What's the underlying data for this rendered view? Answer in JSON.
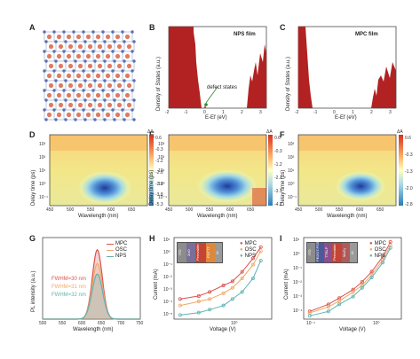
{
  "panels": {
    "A": {
      "letter": "A"
    },
    "B": {
      "letter": "B",
      "title": "NPS film",
      "annotation": "defect states",
      "xlabel": "E-Eₓ (eV)",
      "xlabel_text": "E-Ef (eV)",
      "ylabel": "Density of States (a.u.)",
      "xticks": [
        "-2",
        "-1",
        "0",
        "1",
        "2",
        "3"
      ]
    },
    "C": {
      "letter": "C",
      "title": "MPC film",
      "xlabel_text": "E-Ef (eV)",
      "ylabel": "Density of States (a.u.)",
      "xticks": [
        "-2",
        "-1",
        "0",
        "1",
        "2",
        "3"
      ]
    },
    "D": {
      "letter": "D",
      "xlabel": "Wavelength (nm)",
      "ylabel": "Delay time (ps)",
      "xticks": [
        "450",
        "500",
        "550",
        "600",
        "650"
      ],
      "yticks": [
        "10³",
        "10²",
        "10¹",
        "10⁰",
        "10⁻¹"
      ],
      "cbar_title": "ΔA",
      "cbar": [
        "0.6",
        "-0.3",
        "-1.2",
        "-2.0",
        "-2.9",
        "-3.8",
        "-5.3"
      ]
    },
    "E": {
      "letter": "E",
      "xlabel": "Wavelength (nm)",
      "ylabel": "Delay time (ps)",
      "xticks": [
        "450",
        "500",
        "550",
        "600",
        "650"
      ],
      "yticks": [
        "10³",
        "10²",
        "10¹",
        "10⁰",
        "10⁻¹"
      ],
      "cbar_title": "ΔA",
      "cbar": [
        "0.6",
        "-0.3",
        "-1.2",
        "-2.1",
        "-3.1",
        "-4.2"
      ]
    },
    "F": {
      "letter": "F",
      "xlabel": "Wavelength (nm)",
      "ylabel": "Delay time (ps)",
      "xticks": [
        "450",
        "500",
        "550",
        "600",
        "650"
      ],
      "yticks": [
        "10³",
        "10²",
        "10¹",
        "10⁰",
        "10⁻¹"
      ],
      "cbar_title": "ΔA",
      "cbar": [
        "0.6",
        "-0.3",
        "-1.3",
        "-2.0",
        "-2.8"
      ]
    },
    "G": {
      "letter": "G",
      "xlabel": "Wavelength (nm)",
      "ylabel": "PL intensity (a.u.)",
      "xticks": [
        "500",
        "550",
        "600",
        "650",
        "700",
        "750"
      ],
      "legend": [
        "MPC",
        "OSC",
        "NPS"
      ],
      "fwhm": [
        "FWHM=30 nm",
        "FWHM=31 nm",
        "FWHM=32 nm"
      ]
    },
    "H": {
      "letter": "H",
      "xlabel": "Voltage (V)",
      "ylabel": "Current (mA)",
      "yticks": [
        "10¹",
        "10⁰",
        "10⁻¹",
        "10⁻²",
        "10⁻³",
        "10⁻⁴",
        "10⁻⁵"
      ],
      "xticks": [
        "10⁰"
      ],
      "legend": [
        "MPC",
        "OSC",
        "NPS"
      ],
      "device": [
        "ITO",
        "ZnO",
        "Perovskite",
        "PDTTT",
        "Al"
      ]
    },
    "I": {
      "letter": "I",
      "xlabel": "Voltage (V)",
      "ylabel": "Current (mA)",
      "yticks": [
        "10¹",
        "10⁰",
        "10⁻¹",
        "10⁻²",
        "10⁻³",
        "10⁻⁴"
      ],
      "xticks": [
        "10⁻¹",
        "10⁰"
      ],
      "legend": [
        "MPC",
        "OSC",
        "NPS"
      ],
      "device": [
        "ITO",
        "PEDOT:PSS",
        "TTBLP",
        "Perovskite",
        "MoO₃",
        "Al"
      ]
    }
  },
  "colors": {
    "MPC": "#d9534f",
    "OSC": "#f0a868",
    "NPS": "#5fb3b3"
  },
  "chart_data": [
    {
      "type": "line",
      "panel": "G",
      "xlabel": "Wavelength (nm)",
      "ylabel": "PL intensity (a.u.)",
      "xlim": [
        500,
        750
      ],
      "series": [
        {
          "name": "MPC",
          "center": 640,
          "fwhm": 30,
          "peak": 1.0
        },
        {
          "name": "OSC",
          "center": 640,
          "fwhm": 31,
          "peak": 0.8
        },
        {
          "name": "NPS",
          "center": 640,
          "fwhm": 32,
          "peak": 0.65
        }
      ]
    },
    {
      "type": "scatter",
      "panel": "H",
      "xlabel": "Voltage (V)",
      "ylabel": "Current (mA)",
      "yscale": "log",
      "series": [
        {
          "name": "MPC",
          "x": [
            0.1,
            0.2,
            0.3,
            0.5,
            0.7,
            1.0,
            1.5,
            2.0
          ],
          "y": [
            0.0003,
            0.0005,
            0.001,
            0.003,
            0.006,
            0.03,
            0.3,
            2
          ]
        },
        {
          "name": "OSC",
          "x": [
            0.1,
            0.2,
            0.3,
            0.5,
            0.7,
            1.0,
            1.5,
            2.0
          ],
          "y": [
            0.0001,
            0.0002,
            0.0003,
            0.0008,
            0.002,
            0.01,
            0.1,
            1
          ]
        },
        {
          "name": "NPS",
          "x": [
            0.1,
            0.2,
            0.3,
            0.5,
            0.7,
            1.0,
            1.5,
            2.0
          ],
          "y": [
            2e-05,
            3e-05,
            5e-05,
            0.0001,
            0.0003,
            0.001,
            0.01,
            0.2
          ]
        }
      ]
    },
    {
      "type": "scatter",
      "panel": "I",
      "xlabel": "Voltage (V)",
      "ylabel": "Current (mA)",
      "yscale": "log",
      "series": [
        {
          "name": "MPC",
          "x": [
            0.1,
            0.2,
            0.3,
            0.5,
            0.7,
            1.0,
            1.5,
            2.0
          ],
          "y": [
            0.0001,
            0.0003,
            0.0008,
            0.003,
            0.01,
            0.05,
            0.5,
            5
          ]
        },
        {
          "name": "OSC",
          "x": [
            0.1,
            0.2,
            0.3,
            0.5,
            0.7,
            1.0,
            1.5,
            2.0
          ],
          "y": [
            8e-05,
            0.0002,
            0.0005,
            0.002,
            0.006,
            0.03,
            0.3,
            3
          ]
        },
        {
          "name": "NPS",
          "x": [
            0.1,
            0.2,
            0.3,
            0.5,
            0.7,
            1.0,
            1.5,
            2.0
          ],
          "y": [
            5e-05,
            0.0001,
            0.0003,
            0.001,
            0.004,
            0.02,
            0.2,
            2
          ]
        }
      ]
    }
  ]
}
